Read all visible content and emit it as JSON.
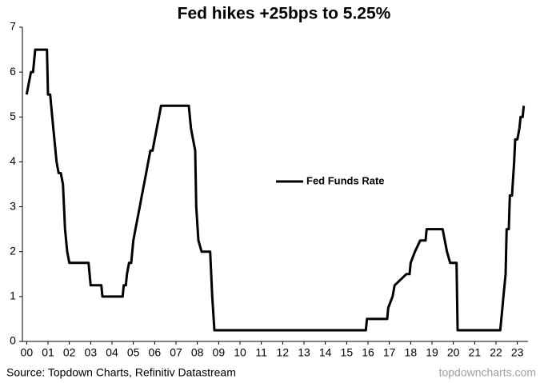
{
  "chart_data": {
    "type": "line",
    "title": "Fed hikes +25bps to 5.25%",
    "source": "Source: Topdown Charts, Refinitiv Datastream",
    "watermark": "topdowncharts.com",
    "legend": "center",
    "grid": false,
    "xlim": [
      -0.2,
      23.5
    ],
    "ylim": [
      0,
      7
    ],
    "yticks": [
      0,
      1,
      2,
      3,
      4,
      5,
      6,
      7
    ],
    "xticks": [
      {
        "value": 0,
        "label": "00"
      },
      {
        "value": 1,
        "label": "01"
      },
      {
        "value": 2,
        "label": "02"
      },
      {
        "value": 3,
        "label": "03"
      },
      {
        "value": 4,
        "label": "04"
      },
      {
        "value": 5,
        "label": "05"
      },
      {
        "value": 6,
        "label": "06"
      },
      {
        "value": 7,
        "label": "07"
      },
      {
        "value": 8,
        "label": "08"
      },
      {
        "value": 9,
        "label": "09"
      },
      10,
      11,
      12,
      13,
      14,
      15,
      16,
      17,
      18,
      19,
      20,
      21,
      22,
      23
    ],
    "series": [
      {
        "name": "Fed Funds Rate",
        "color": "#000000",
        "x": [
          0,
          0.1,
          0.2,
          0.3,
          0.4,
          0.95,
          1.0,
          1.1,
          1.2,
          1.3,
          1.4,
          1.5,
          1.6,
          1.7,
          1.75,
          1.8,
          1.9,
          2.0,
          2.9,
          3.0,
          3.5,
          3.55,
          4.5,
          4.55,
          4.65,
          4.7,
          4.8,
          4.9,
          5.0,
          5.1,
          5.2,
          5.3,
          5.4,
          5.5,
          5.6,
          5.7,
          5.8,
          5.9,
          6.0,
          6.1,
          6.2,
          6.3,
          7.6,
          7.7,
          7.8,
          7.9,
          7.95,
          8.05,
          8.2,
          8.6,
          8.7,
          8.8,
          15.9,
          15.95,
          16.9,
          16.95,
          17.15,
          17.25,
          17.8,
          17.95,
          18.0,
          18.2,
          18.45,
          18.7,
          18.75,
          19.5,
          19.6,
          19.7,
          19.85,
          20.15,
          20.2,
          22.2,
          22.25,
          22.35,
          22.45,
          22.5,
          22.6,
          22.65,
          22.75,
          22.85,
          22.9,
          23.0,
          23.1,
          23.15,
          23.25,
          23.3
        ],
        "values": [
          5.5,
          5.75,
          6.0,
          6.0,
          6.5,
          6.5,
          5.5,
          5.5,
          5.0,
          4.5,
          4.0,
          3.75,
          3.75,
          3.5,
          3.0,
          2.5,
          2.0,
          1.75,
          1.75,
          1.25,
          1.25,
          1.0,
          1.0,
          1.25,
          1.25,
          1.5,
          1.75,
          1.75,
          2.25,
          2.5,
          2.75,
          3.0,
          3.25,
          3.5,
          3.75,
          4.0,
          4.25,
          4.25,
          4.5,
          4.75,
          5.0,
          5.25,
          5.25,
          4.75,
          4.5,
          4.25,
          3.0,
          2.25,
          2.0,
          2.0,
          1.0,
          0.25,
          0.25,
          0.5,
          0.5,
          0.75,
          1.0,
          1.25,
          1.5,
          1.5,
          1.75,
          2.0,
          2.25,
          2.25,
          2.5,
          2.5,
          2.25,
          2.0,
          1.75,
          1.75,
          0.25,
          0.25,
          0.5,
          1.0,
          1.5,
          2.5,
          2.5,
          3.25,
          3.25,
          4.0,
          4.5,
          4.5,
          4.75,
          5.0,
          5.0,
          5.25
        ]
      }
    ]
  }
}
